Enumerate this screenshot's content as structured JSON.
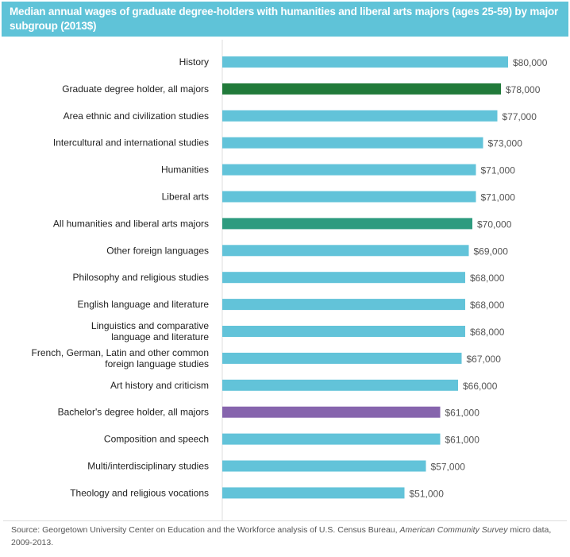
{
  "chart_data": {
    "type": "bar",
    "orientation": "horizontal",
    "title": "Median annual wages of graduate degree-holders with humanities and liberal arts majors (ages 25-59) by major subgroup (2013$)",
    "categories": [
      [
        "History"
      ],
      [
        "Graduate degree holder, all majors"
      ],
      [
        "Area ethnic and civilization studies"
      ],
      [
        "Intercultural and international studies"
      ],
      [
        "Humanities"
      ],
      [
        "Liberal arts"
      ],
      [
        "All humanities and liberal arts majors"
      ],
      [
        "Other foreign languages"
      ],
      [
        "Philosophy and religious studies"
      ],
      [
        "English language and literature"
      ],
      [
        "Linguistics and comparative",
        "language and literature"
      ],
      [
        "French, German, Latin and other common",
        "foreign language studies"
      ],
      [
        "Art history and criticism"
      ],
      [
        "Bachelor's degree holder, all majors"
      ],
      [
        "Composition and speech"
      ],
      [
        "Multi/interdisciplinary studies"
      ],
      [
        "Theology and religious vocations"
      ]
    ],
    "values": [
      80000,
      78000,
      77000,
      73000,
      71000,
      71000,
      70000,
      69000,
      68000,
      68000,
      68000,
      67000,
      66000,
      61000,
      61000,
      57000,
      51000
    ],
    "data_labels": [
      "$80,000",
      "$78,000",
      "$77,000",
      "$73,000",
      "$71,000",
      "$71,000",
      "$70,000",
      "$69,000",
      "$68,000",
      "$68,000",
      "$68,000",
      "$67,000",
      "$66,000",
      "$61,000",
      "$61,000",
      "$57,000",
      "$51,000"
    ],
    "bar_colors": [
      "#62c3d9",
      "#217a3a",
      "#62c3d9",
      "#62c3d9",
      "#62c3d9",
      "#62c3d9",
      "#2e9b7f",
      "#62c3d9",
      "#62c3d9",
      "#62c3d9",
      "#62c3d9",
      "#62c3d9",
      "#62c3d9",
      "#8664ad",
      "#62c3d9",
      "#62c3d9",
      "#62c3d9"
    ],
    "xlim": [
      0,
      80000
    ],
    "grid": false,
    "header_color": "#5fc3d8"
  },
  "source": {
    "text": "Source: Georgetown University Center on Education and the Workforce analysis of U.S. Census Bureau, ",
    "italic": "American Community Survey",
    "tail": " micro data, 2009-2013."
  }
}
